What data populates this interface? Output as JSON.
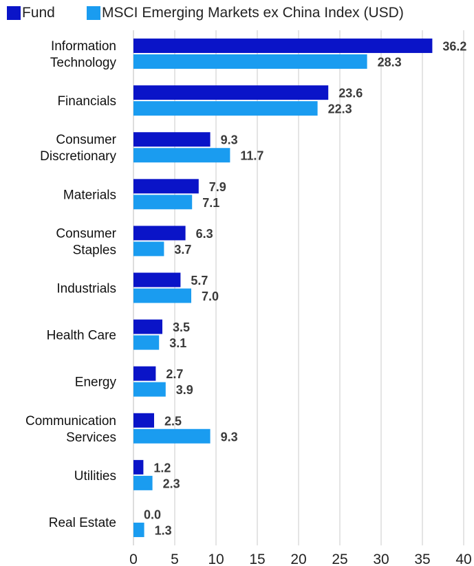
{
  "colors": {
    "fund": "#0a14c8",
    "index": "#1a9cf0",
    "grid": "#c8c8c8"
  },
  "legend": {
    "fund_label": "Fund",
    "index_label": "MSCI Emerging Markets ex China Index (USD)"
  },
  "chart_data": {
    "type": "bar",
    "orientation": "horizontal",
    "categories": [
      [
        "Information",
        "Technology"
      ],
      [
        "Financials"
      ],
      [
        "Consumer",
        "Discretionary"
      ],
      [
        "Materials"
      ],
      [
        "Consumer",
        "Staples"
      ],
      [
        "Industrials"
      ],
      [
        "Health Care"
      ],
      [
        "Energy"
      ],
      [
        "Communication",
        "Services"
      ],
      [
        "Utilities"
      ],
      [
        "Real Estate"
      ]
    ],
    "series": [
      {
        "name": "Fund",
        "values": [
          36.2,
          23.6,
          9.3,
          7.9,
          6.3,
          5.7,
          3.5,
          2.7,
          2.5,
          1.2,
          0.0
        ],
        "labels": [
          "36.2",
          "23.6",
          "9.3",
          "7.9",
          "6.3",
          "5.7",
          "3.5",
          "2.7",
          "2.5",
          "1.2",
          "0.0"
        ]
      },
      {
        "name": "MSCI Emerging Markets ex China Index (USD)",
        "values": [
          28.3,
          22.3,
          11.7,
          7.1,
          3.7,
          7.0,
          3.1,
          3.9,
          9.3,
          2.3,
          1.3
        ],
        "labels": [
          "28.3",
          "22.3",
          "11.7",
          "7.1",
          "3.7",
          "7.0",
          "3.1",
          "3.9",
          "9.3",
          "2.3",
          "1.3"
        ]
      }
    ],
    "xlim": [
      0,
      40
    ],
    "xticks": [
      "0",
      "5",
      "10",
      "15",
      "20",
      "25",
      "30",
      "35",
      "40"
    ],
    "grid": true,
    "legend_position": "top-left"
  }
}
